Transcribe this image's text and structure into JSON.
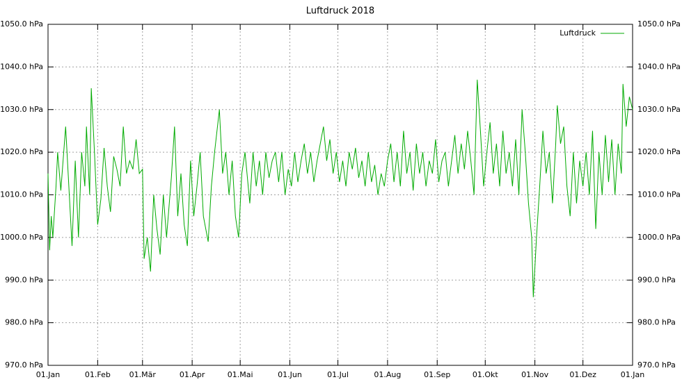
{
  "chart_data": {
    "type": "line",
    "title": "Luftdruck 2018",
    "x": [
      0,
      1,
      2,
      3,
      5,
      6,
      8,
      9,
      11,
      13,
      15,
      17,
      19,
      21,
      23,
      24,
      26,
      27,
      29,
      31,
      33,
      35,
      37,
      39,
      41,
      43,
      45,
      47,
      49,
      51,
      53,
      55,
      57,
      59,
      60,
      62,
      64,
      66,
      68,
      70,
      72,
      74,
      77,
      79,
      81,
      83,
      85,
      87,
      89,
      91,
      93,
      95,
      97,
      100,
      102,
      104,
      107,
      109,
      111,
      113,
      115,
      117,
      119,
      121,
      123,
      126,
      128,
      130,
      132,
      134,
      136,
      138,
      140,
      142,
      144,
      146,
      148,
      150,
      152,
      154,
      156,
      158,
      160,
      162,
      164,
      166,
      168,
      170,
      172,
      174,
      176,
      178,
      180,
      182,
      184,
      186,
      188,
      190,
      192,
      194,
      196,
      198,
      200,
      202,
      204,
      206,
      208,
      210,
      212,
      214,
      216,
      218,
      220,
      222,
      224,
      226,
      228,
      230,
      232,
      234,
      236,
      238,
      240,
      242,
      244,
      246,
      248,
      250,
      252,
      254,
      256,
      258,
      260,
      262,
      264,
      266,
      268,
      270,
      272,
      274,
      276,
      278,
      280,
      282,
      284,
      286,
      288,
      290,
      292,
      294,
      296,
      298,
      300,
      302,
      303,
      305,
      307,
      309,
      311,
      313,
      315,
      317,
      318,
      320,
      322,
      324,
      326,
      328,
      330,
      332,
      334,
      336,
      338,
      340,
      342,
      344,
      346,
      348,
      350,
      352,
      354,
      356,
      358,
      359,
      361,
      363,
      365
    ],
    "series": [
      {
        "name": "Luftdruck",
        "color": "#00aa00",
        "values": [
          1015,
          997,
          1005,
          1000,
          1012,
          1020,
          1011,
          1016,
          1026,
          1012,
          998,
          1018,
          1000,
          1020,
          1012,
          1026,
          1010,
          1035,
          1020,
          1003,
          1009,
          1021,
          1012,
          1006,
          1019,
          1016,
          1012,
          1026,
          1015,
          1018,
          1016,
          1023,
          1015,
          1016,
          995,
          1000,
          992,
          1010,
          1002,
          996,
          1010,
          1000,
          1014,
          1026,
          1005,
          1015,
          1003,
          998,
          1018,
          1005,
          1012,
          1020,
          1005,
          999,
          1012,
          1020,
          1030,
          1015,
          1020,
          1010,
          1018,
          1005,
          1000,
          1015,
          1020,
          1008,
          1020,
          1012,
          1018,
          1010,
          1020,
          1014,
          1018,
          1020,
          1013,
          1020,
          1010,
          1016,
          1012,
          1020,
          1013,
          1018,
          1022,
          1015,
          1020,
          1013,
          1018,
          1022,
          1026,
          1018,
          1023,
          1015,
          1020,
          1013,
          1018,
          1012,
          1020,
          1016,
          1021,
          1014,
          1018,
          1012,
          1020,
          1013,
          1017,
          1010,
          1015,
          1012,
          1018,
          1022,
          1013,
          1020,
          1012,
          1025,
          1015,
          1020,
          1011,
          1022,
          1015,
          1020,
          1012,
          1018,
          1015,
          1023,
          1013,
          1018,
          1020,
          1012,
          1018,
          1024,
          1015,
          1022,
          1016,
          1025,
          1018,
          1010,
          1037,
          1025,
          1012,
          1020,
          1027,
          1015,
          1022,
          1012,
          1025,
          1015,
          1020,
          1012,
          1023,
          1010,
          1030,
          1020,
          1008,
          1000,
          986,
          1000,
          1012,
          1025,
          1015,
          1020,
          1008,
          1022,
          1031,
          1022,
          1026,
          1012,
          1005,
          1020,
          1008,
          1018,
          1012,
          1020,
          1010,
          1025,
          1002,
          1020,
          1010,
          1024,
          1013,
          1023,
          1010,
          1022,
          1015,
          1036,
          1026,
          1033,
          1030
        ]
      }
    ],
    "xlim": [
      0,
      365
    ],
    "xticks": [
      {
        "value": 0,
        "label": "01.Jan"
      },
      {
        "value": 31,
        "label": "01.Feb"
      },
      {
        "value": 59,
        "label": "01.Mär"
      },
      {
        "value": 90,
        "label": "01.Apr"
      },
      {
        "value": 120,
        "label": "01.Mai"
      },
      {
        "value": 151,
        "label": "01.Jun"
      },
      {
        "value": 181,
        "label": "01.Jul"
      },
      {
        "value": 212,
        "label": "01.Aug"
      },
      {
        "value": 243,
        "label": "01.Sep"
      },
      {
        "value": 273,
        "label": "01.Okt"
      },
      {
        "value": 304,
        "label": "01.Nov"
      },
      {
        "value": 334,
        "label": "01.Dez"
      },
      {
        "value": 365,
        "label": "01.Jan"
      }
    ],
    "ylim": [
      970,
      1050
    ],
    "yticks": [
      {
        "value": 970,
        "label": "970.0 hPa"
      },
      {
        "value": 980,
        "label": "980.0 hPa"
      },
      {
        "value": 990,
        "label": "990.0 hPa"
      },
      {
        "value": 1000,
        "label": "1000.0 hPa"
      },
      {
        "value": 1010,
        "label": "1010.0 hPa"
      },
      {
        "value": 1020,
        "label": "1020.0 hPa"
      },
      {
        "value": 1030,
        "label": "1030.0 hPa"
      },
      {
        "value": 1040,
        "label": "1040.0 hPa"
      },
      {
        "value": 1050,
        "label": "1050.0 hPa"
      }
    ],
    "y2lim": [
      970,
      1050
    ],
    "y2ticks": [
      {
        "value": 970,
        "label": "970.0 hPa"
      },
      {
        "value": 980,
        "label": "980.0 hPa"
      },
      {
        "value": 990,
        "label": "990.0 hPa"
      },
      {
        "value": 1000,
        "label": "1000.0 hPa"
      },
      {
        "value": 1010,
        "label": "1010.0 hPa"
      },
      {
        "value": 1020,
        "label": "1020.0 hPa"
      },
      {
        "value": 1030,
        "label": "1030.0 hPa"
      },
      {
        "value": 1040,
        "label": "1040.0 hPa"
      },
      {
        "value": 1050,
        "label": "1050.0 hPa"
      }
    ],
    "grid": true,
    "legend": "top-right"
  }
}
